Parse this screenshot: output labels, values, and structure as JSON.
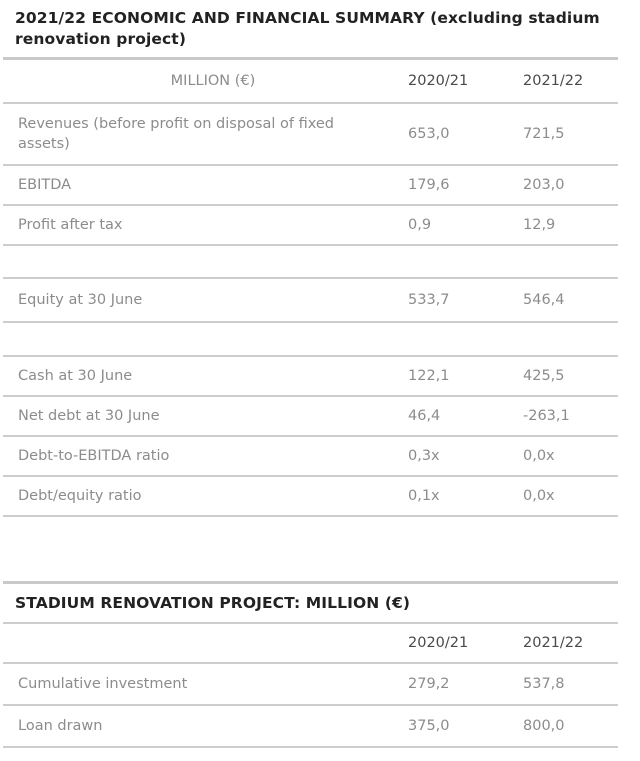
{
  "colors": {
    "title_text": "#222222",
    "column_header_text": "#4a4a4a",
    "body_text": "#8c8c8c",
    "divider": "#cdcdcd",
    "background": "#ffffff"
  },
  "summary_table": {
    "title": "2021/22 ECONOMIC AND FINANCIAL SUMMARY (excluding stadium renovation project)",
    "columns": {
      "label": "MILLION (€)",
      "fy1": "2020/21",
      "fy2": "2021/22"
    },
    "rows": [
      {
        "label": "Revenues (before profit on disposal of fixed assets)",
        "fy1": "653,0",
        "fy2": "721,5"
      },
      {
        "label": "EBITDA",
        "fy1": "179,6",
        "fy2": "203,0"
      },
      {
        "label": "Profit after tax",
        "fy1": "0,9",
        "fy2": "12,9"
      },
      {
        "label": "",
        "fy1": "",
        "fy2": ""
      },
      {
        "label": "Equity at 30 June",
        "fy1": "533,7",
        "fy2": "546,4"
      },
      {
        "label": "",
        "fy1": "",
        "fy2": ""
      },
      {
        "label": "Cash at 30 June",
        "fy1": "122,1",
        "fy2": "425,5"
      },
      {
        "label": "Net debt at 30 June",
        "fy1": "46,4",
        "fy2": "-263,1"
      },
      {
        "label": "Debt-to-EBITDA ratio",
        "fy1": "0,3x",
        "fy2": "0,0x"
      },
      {
        "label": "Debt/equity ratio",
        "fy1": "0,1x",
        "fy2": "0,0x"
      }
    ]
  },
  "stadium_table": {
    "title": "STADIUM RENOVATION PROJECT: MILLION (€)",
    "columns": {
      "label": "",
      "fy1": "2020/21",
      "fy2": "2021/22"
    },
    "rows": [
      {
        "label": "Cumulative investment",
        "fy1": "279,2",
        "fy2": "537,8"
      },
      {
        "label": "Loan drawn",
        "fy1": "375,0",
        "fy2": "800,0"
      }
    ]
  }
}
